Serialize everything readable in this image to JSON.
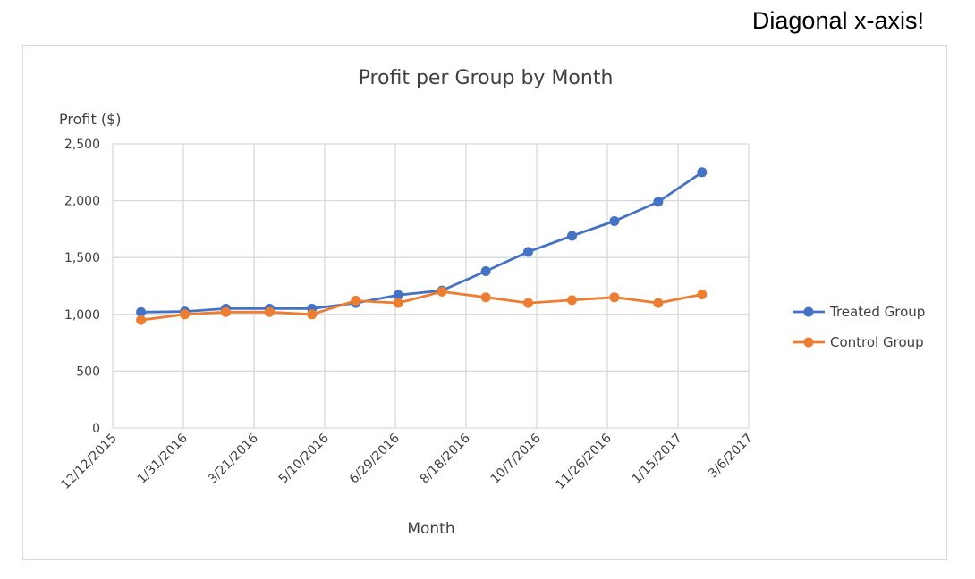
{
  "page_note": "Diagonal x-axis!",
  "chart_data": {
    "type": "line",
    "title": "Profit per Group by Month",
    "xlabel": "Month",
    "ylabel": "Profit ($)",
    "x_ticks": [
      "12/12/2015",
      "1/31/2016",
      "3/21/2016",
      "5/10/2016",
      "6/29/2016",
      "8/18/2016",
      "10/7/2016",
      "11/26/2016",
      "1/15/2017",
      "3/6/2017"
    ],
    "ylim": [
      0,
      2500
    ],
    "y_ticks": [
      "0",
      "500",
      "1,000",
      "1,500",
      "2,000",
      "2,500"
    ],
    "x": [
      "2016-01-01",
      "2016-02-01",
      "2016-03-01",
      "2016-04-01",
      "2016-05-01",
      "2016-06-01",
      "2016-07-01",
      "2016-08-01",
      "2016-09-01",
      "2016-10-01",
      "2016-11-01",
      "2016-12-01",
      "2017-01-01",
      "2017-02-01"
    ],
    "series": [
      {
        "name": "Treated Group",
        "color": "#4472c4",
        "values": [
          1020,
          1025,
          1050,
          1050,
          1050,
          1100,
          1170,
          1210,
          1380,
          1550,
          1690,
          1820,
          1990,
          2250
        ]
      },
      {
        "name": "Control Group",
        "color": "#ed7d31",
        "values": [
          950,
          1000,
          1020,
          1020,
          1000,
          1120,
          1100,
          1200,
          1150,
          1100,
          1125,
          1150,
          1100,
          1175
        ]
      }
    ],
    "grid": true,
    "legend": "right"
  }
}
